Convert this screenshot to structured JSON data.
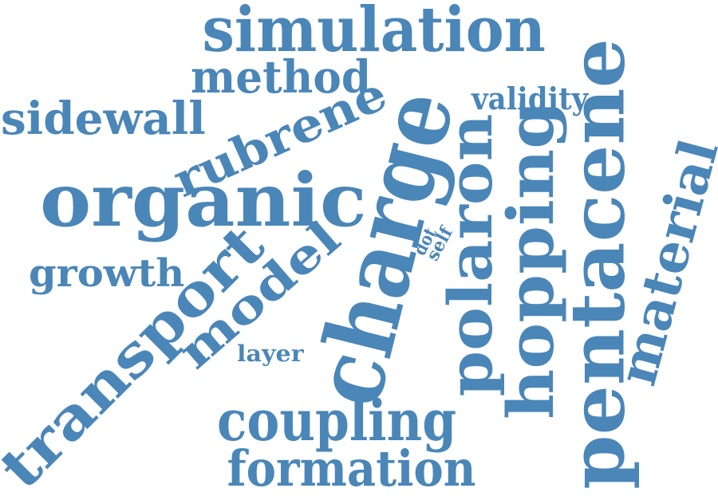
{
  "color": "#4a86b8",
  "words": {
    "simulation": "simulation",
    "method": "method",
    "sidewall": "sidewall",
    "rubrene": "rubrene",
    "organic": "organic",
    "growth": "growth",
    "transport": "transport",
    "model": "model",
    "layer": "layer",
    "charge": "charge",
    "dot": "dot",
    "self": "self",
    "validity": "validity",
    "polaron": "polaron",
    "hopping": "hopping",
    "pentacene": "pentacene",
    "material": "material",
    "coupling": "coupling",
    "formation": "formation"
  }
}
